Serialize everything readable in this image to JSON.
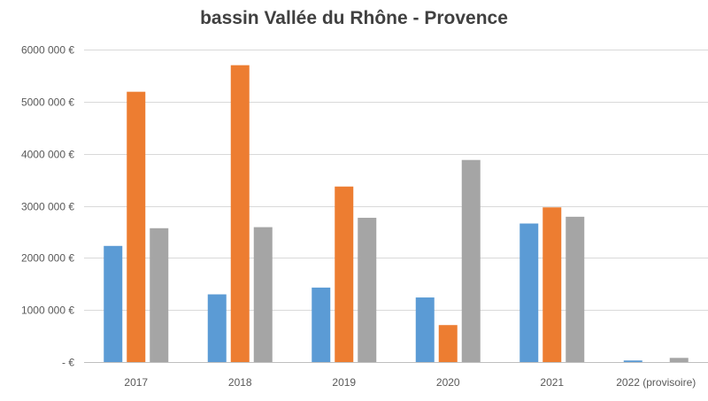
{
  "chart_data": {
    "type": "bar",
    "title": "bassin Vallée du Rhône - Provence",
    "xlabel": "",
    "ylabel": "",
    "categories": [
      "2017",
      "2018",
      "2019",
      "2020",
      "2021",
      "2022 (provisoire)"
    ],
    "series": [
      {
        "color": "#5b9bd5",
        "values": [
          2230000,
          1300000,
          1430000,
          1240000,
          2660000,
          30000
        ]
      },
      {
        "color": "#ed7d31",
        "values": [
          5190000,
          5700000,
          3370000,
          710000,
          2970000,
          0
        ]
      },
      {
        "color": "#a5a5a5",
        "values": [
          2570000,
          2590000,
          2770000,
          3880000,
          2790000,
          80000
        ]
      }
    ],
    "ylim": [
      0,
      6000000
    ],
    "yticks": [
      0,
      1000000,
      2000000,
      3000000,
      4000000,
      5000000,
      6000000
    ],
    "ytick_labels": [
      "-   €",
      "1000 000 €",
      "2000 000 €",
      "3000 000 €",
      "4000 000 €",
      "5000 000 €",
      "6000 000 €"
    ],
    "grid": true,
    "legend": "none"
  }
}
